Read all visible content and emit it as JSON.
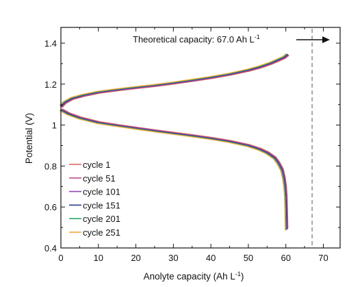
{
  "chart_data": {
    "type": "line",
    "xlabel_main": "Anolyte capacity (Ah L",
    "xlabel_sup": "-1",
    "xlabel_end": ")",
    "ylabel": "Potential (V)",
    "xlim": [
      0,
      70
    ],
    "ylim": [
      0.4,
      1.45
    ],
    "xticks": [
      0,
      10,
      20,
      30,
      40,
      50,
      60,
      70
    ],
    "yticks": [
      0.4,
      0.6,
      0.8,
      1,
      1.2,
      1.4
    ],
    "ytick_labels": [
      "0.4",
      "0.6",
      "0.8",
      "1",
      "1.2",
      "1.4"
    ],
    "grid": false,
    "legend_position": "lower-left",
    "annotation": {
      "text_main": "Theoretical capacity: 67.0 Ah L",
      "text_sup": "-1",
      "x": 67.0
    },
    "charge_curve": {
      "x": [
        0,
        1,
        3,
        6,
        10,
        15,
        20,
        25,
        30,
        35,
        40,
        45,
        50,
        53,
        56,
        58,
        59.5,
        60.5
      ],
      "y": [
        1.09,
        1.11,
        1.13,
        1.145,
        1.16,
        1.172,
        1.183,
        1.193,
        1.205,
        1.218,
        1.232,
        1.248,
        1.268,
        1.283,
        1.302,
        1.318,
        1.33,
        1.345
      ]
    },
    "discharge_curve": {
      "x": [
        0,
        0.5,
        2,
        5,
        10,
        15,
        20,
        25,
        30,
        35,
        40,
        45,
        50,
        53,
        55,
        57,
        58,
        59,
        59.5,
        59.8,
        60,
        60.1,
        60.2
      ],
      "y": [
        1.075,
        1.07,
        1.055,
        1.035,
        1.012,
        0.998,
        0.985,
        0.972,
        0.96,
        0.948,
        0.935,
        0.92,
        0.9,
        0.882,
        0.865,
        0.84,
        0.815,
        0.78,
        0.74,
        0.7,
        0.65,
        0.58,
        0.49
      ]
    },
    "series": [
      {
        "name": "cycle 1",
        "color": "#d6604d",
        "x_offset": 0.35
      },
      {
        "name": "cycle 51",
        "color": "#c0508f",
        "x_offset": 0.25
      },
      {
        "name": "cycle 101",
        "color": "#8e44ad",
        "x_offset": 0.15
      },
      {
        "name": "cycle 151",
        "color": "#2c3e8f",
        "x_offset": 0.05
      },
      {
        "name": "cycle 201",
        "color": "#2ca86a",
        "x_offset": -0.2
      },
      {
        "name": "cycle 251",
        "color": "#f0a030",
        "x_offset": -0.35
      }
    ]
  }
}
